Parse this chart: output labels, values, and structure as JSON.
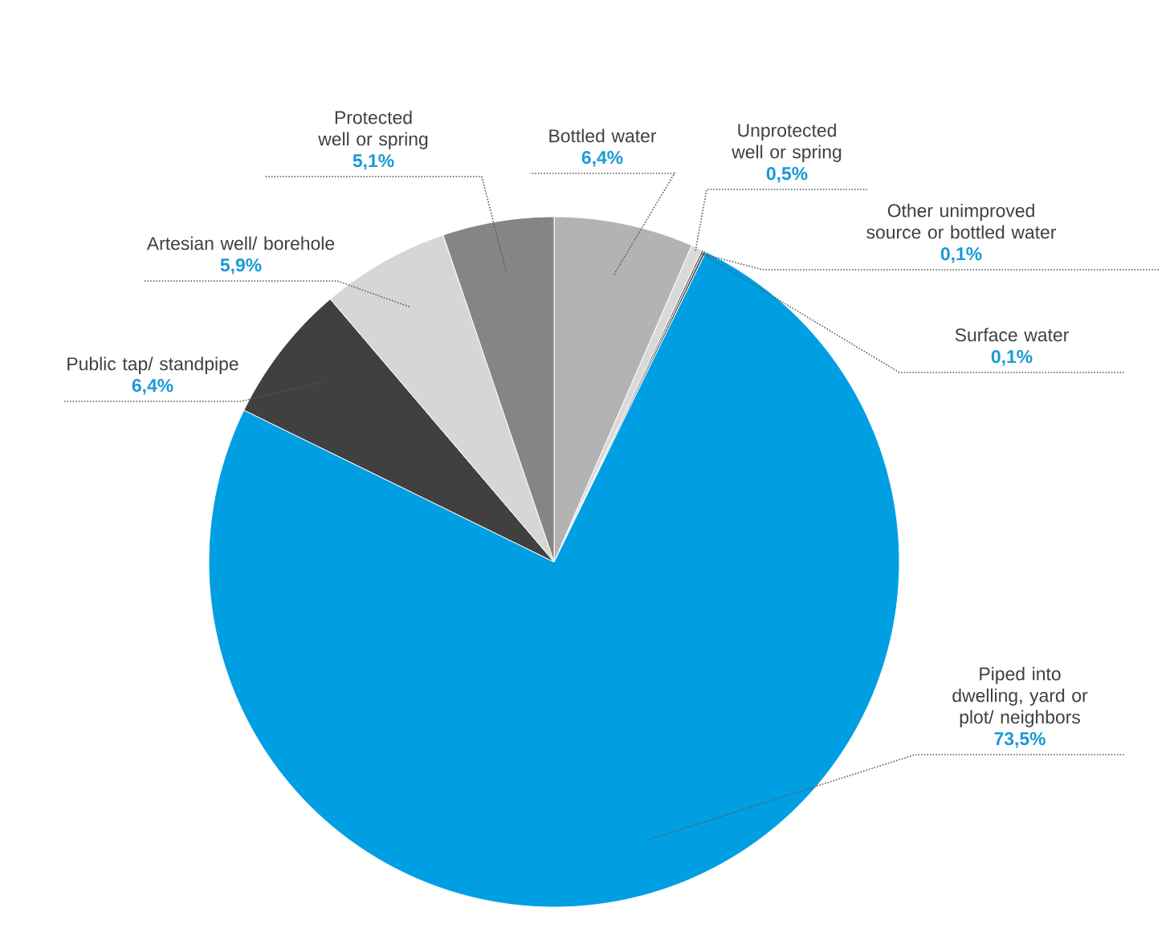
{
  "chart_data": {
    "type": "pie",
    "categories": [
      "Bottled water",
      "Unprotected well or spring",
      "Other unimproved source or bottled water",
      "Surface water",
      "Piped into dwelling, yard or plot/ neighbors",
      "Public tap/ standpipe",
      "Artesian well/ borehole",
      "Protected well or spring"
    ],
    "values": [
      6.4,
      0.5,
      0.1,
      0.1,
      73.5,
      6.4,
      5.9,
      5.1
    ],
    "colors": [
      "#b3b3b3",
      "#d9d9d9",
      "#6e6e6e",
      "#3d3d3d",
      "#009fe3",
      "#404040",
      "#d6d6d6",
      "#858585"
    ],
    "value_labels": [
      "6,4%",
      "0,5%",
      "0,1%",
      "0,1%",
      "73,5%",
      "6,4%",
      "5,9%",
      "5,1%"
    ]
  }
}
